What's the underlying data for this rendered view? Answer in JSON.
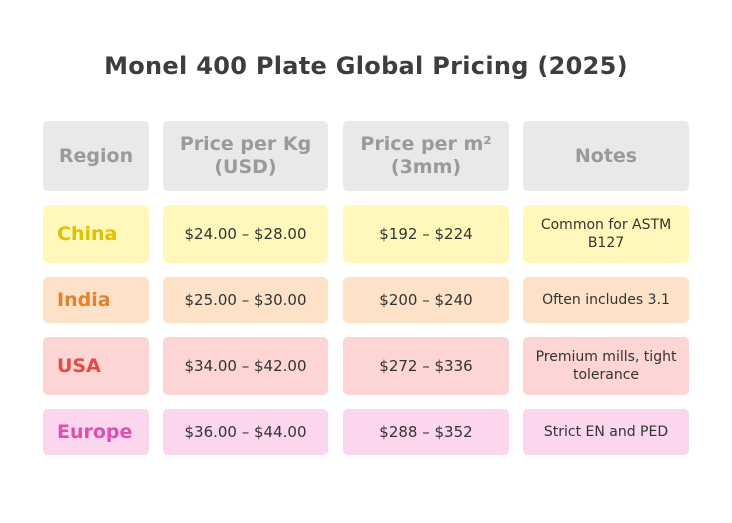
{
  "chart_data": {
    "type": "table",
    "title": "Monel 400 Plate Global Pricing (2025)",
    "columns": [
      "Region",
      "Price per Kg (USD)",
      "Price per m² (3mm)",
      "Notes"
    ],
    "rows": [
      {
        "region": "China",
        "price_per_kg": "$24.00 – $28.00",
        "price_per_m2": "$192 – $224",
        "notes": "Common for ASTM B127",
        "row_color": "#fff8ba",
        "label_color": "#e0c000"
      },
      {
        "region": "India",
        "price_per_kg": "$25.00 – $30.00",
        "price_per_m2": "$200 – $240",
        "notes": "Often includes 3.1",
        "row_color": "#fde2c8",
        "label_color": "#e3822a"
      },
      {
        "region": "USA",
        "price_per_kg": "$34.00 – $42.00",
        "price_per_m2": "$272 – $336",
        "notes": "Premium mills, tight tolerance",
        "row_color": "#fdd5d5",
        "label_color": "#e24b4b"
      },
      {
        "region": "Europe",
        "price_per_kg": "$36.00 – $44.00",
        "price_per_m2": "$288 – $352",
        "notes": "Strict EN and PED",
        "row_color": "#fcd6ee",
        "label_color": "#e04fb0"
      }
    ]
  }
}
